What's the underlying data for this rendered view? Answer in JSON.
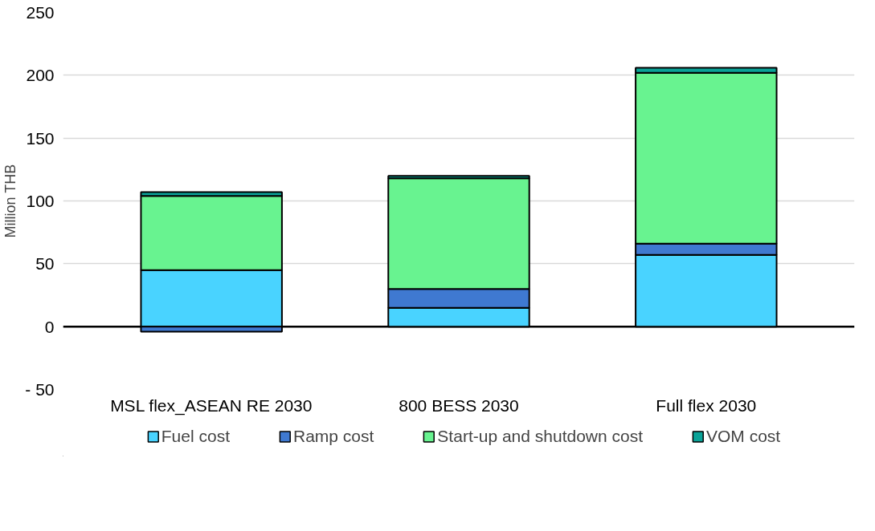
{
  "chart_data": {
    "type": "bar",
    "stacked": true,
    "ylabel": "Million THB",
    "categories": [
      "MSL flex_ASEAN RE 2030",
      "800 BESS 2030",
      "Full flex 2030"
    ],
    "series": [
      {
        "name": "Fuel cost",
        "color": "#49d3ff",
        "values": [
          45,
          15,
          57
        ]
      },
      {
        "name": "Ramp cost",
        "color": "#3f79d1",
        "values": [
          -4,
          15,
          9
        ]
      },
      {
        "name": "Start-up and shutdown cost",
        "color": "#68f390",
        "values": [
          59,
          88,
          136
        ]
      },
      {
        "name": "VOM cost",
        "color": "#0aa398",
        "values": [
          3,
          2,
          4
        ]
      }
    ],
    "ylim": [
      -50,
      250
    ],
    "yticks": [
      {
        "value": -50,
        "label": "- 50"
      },
      0,
      50,
      100,
      150,
      200,
      250
    ],
    "ref_lines": [
      {
        "axis": "y",
        "value": 0,
        "color": "#000000"
      }
    ],
    "grid": "y",
    "legend": "bottom"
  }
}
